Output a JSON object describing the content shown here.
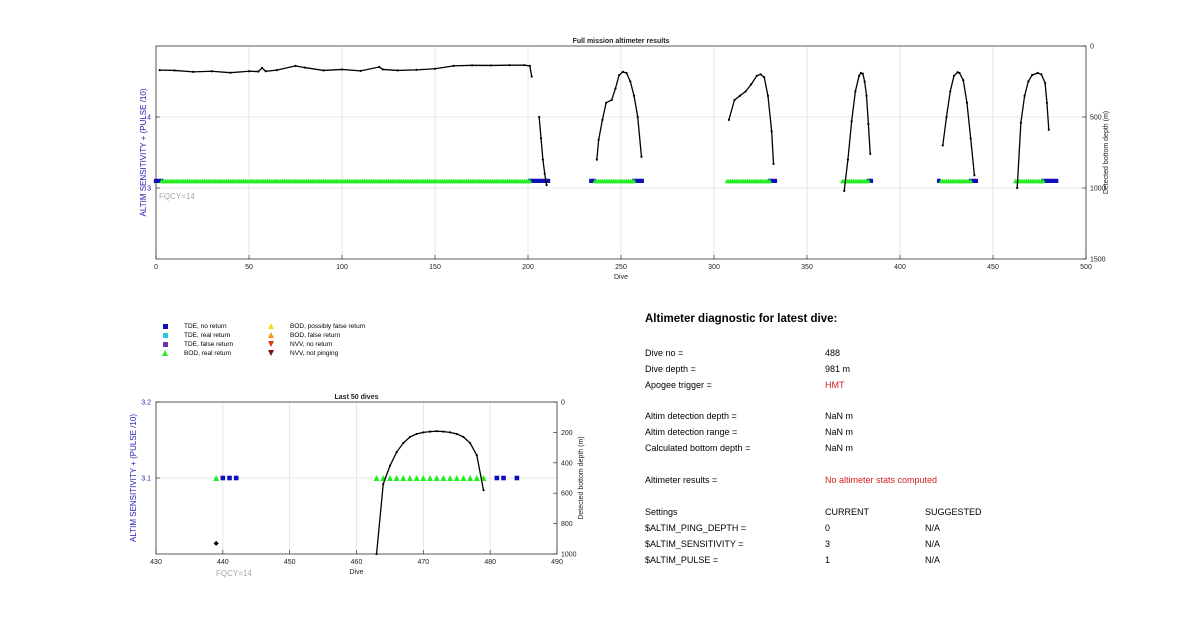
{
  "chart_data": [
    {
      "type": "scatter",
      "title": "Full mission altimeter results",
      "xlabel": "Dive",
      "ylabel": "ALTIM SENSITIVITY + (PULSE /10)",
      "y2label": "Detected bottom depth (m)",
      "annotation": "FQCY=14",
      "xlim": [
        0,
        500
      ],
      "ylim": [
        2,
        5
      ],
      "y2lim": [
        1500,
        0
      ],
      "x_ticks": [
        0,
        50,
        100,
        150,
        200,
        250,
        300,
        350,
        400,
        450,
        500
      ],
      "y_ticks": [
        3,
        4
      ],
      "y2_ticks": [
        0,
        500,
        1000,
        1500
      ],
      "grid": true,
      "series": [
        {
          "name": "TDE, no return",
          "segments": [
            [
              0,
              3,
              3.1
            ],
            [
              201,
              212,
              3.1
            ],
            [
              234,
              236,
              3.1
            ],
            [
              257,
              262,
              3.1
            ],
            [
              330,
              333,
              3.1
            ],
            [
              383,
              385,
              3.1
            ],
            [
              421,
              422,
              3.1
            ],
            [
              438,
              442,
              3.1
            ],
            [
              477,
              484,
              3.1
            ]
          ]
        },
        {
          "name": "BOD, real return",
          "segments": [
            [
              3,
              201,
              3.1
            ],
            [
              236,
              257,
              3.1
            ],
            [
              307,
              330,
              3.1
            ],
            [
              369,
              383,
              3.1
            ],
            [
              422,
              438,
              3.1
            ],
            [
              462,
              477,
              3.1
            ]
          ]
        },
        {
          "name": "Detected bottom depth",
          "points": [
            [
              2,
              170
            ],
            [
              10,
              172
            ],
            [
              20,
              182
            ],
            [
              30,
              178
            ],
            [
              40,
              188
            ],
            [
              50,
              178
            ],
            [
              55,
              180
            ],
            [
              57,
              155
            ],
            [
              59,
              178
            ],
            [
              65,
              170
            ],
            [
              75,
              140
            ],
            [
              80,
              152
            ],
            [
              90,
              172
            ],
            [
              100,
              165
            ],
            [
              110,
              175
            ],
            [
              120,
              148
            ],
            [
              122,
              165
            ],
            [
              130,
              172
            ],
            [
              140,
              168
            ],
            [
              150,
              160
            ],
            [
              160,
              140
            ],
            [
              170,
              136
            ],
            [
              180,
              137
            ],
            [
              190,
              135
            ],
            [
              198,
              135
            ],
            [
              201,
              140
            ],
            [
              202,
              215
            ],
            null,
            [
              206,
              500
            ],
            [
              207,
              650
            ],
            [
              208,
              800
            ],
            [
              209,
              900
            ],
            [
              210,
              980
            ],
            null,
            [
              237,
              800
            ],
            [
              238,
              660
            ],
            [
              240,
              520
            ],
            [
              242,
              400
            ],
            [
              245,
              380
            ],
            [
              247,
              300
            ],
            [
              249,
              205
            ],
            [
              251,
              182
            ],
            [
              253,
              190
            ],
            [
              255,
              250
            ],
            [
              257,
              350
            ],
            [
              259,
              500
            ],
            [
              261,
              780
            ],
            null,
            [
              308,
              520
            ],
            [
              311,
              380
            ],
            [
              314,
              350
            ],
            [
              317,
              320
            ],
            [
              320,
              270
            ],
            [
              323,
              210
            ],
            [
              325,
              200
            ],
            [
              327,
              220
            ],
            [
              329,
              350
            ],
            [
              331,
              600
            ],
            [
              332,
              830
            ],
            null,
            [
              370,
              1020
            ],
            [
              372,
              800
            ],
            [
              374,
              530
            ],
            [
              376,
              320
            ],
            [
              378,
              210
            ],
            [
              379,
              190
            ],
            [
              380,
              195
            ],
            [
              381,
              250
            ],
            [
              382,
              350
            ],
            [
              383,
              550
            ],
            [
              384,
              760
            ],
            null,
            [
              423,
              700
            ],
            [
              425,
              500
            ],
            [
              427,
              320
            ],
            [
              429,
              210
            ],
            [
              431,
              185
            ],
            [
              432,
              190
            ],
            [
              434,
              240
            ],
            [
              436,
              400
            ],
            [
              438,
              650
            ],
            [
              440,
              910
            ],
            null,
            [
              463,
              1000
            ],
            [
              465,
              540
            ],
            [
              467,
              350
            ],
            [
              469,
              250
            ],
            [
              471,
              205
            ],
            [
              474,
              190
            ],
            [
              476,
              200
            ],
            [
              478,
              260
            ],
            [
              479,
              400
            ],
            [
              480,
              590
            ]
          ]
        }
      ]
    },
    {
      "type": "scatter",
      "title": "Last 50 dives",
      "xlabel": "Dive",
      "ylabel": "ALTIM SENSITIVITY + (PULSE /10)",
      "y2label": "Detected bottom depth (m)",
      "annotation": "FQCY=14",
      "xlim": [
        430,
        490
      ],
      "ylim": [
        3.0,
        3.2
      ],
      "y2lim": [
        1000,
        0
      ],
      "x_ticks": [
        430,
        440,
        450,
        460,
        470,
        480,
        490
      ],
      "y_ticks": [
        3.1,
        3.2
      ],
      "y2_ticks": [
        0,
        200,
        400,
        600,
        800,
        1000
      ],
      "grid": true,
      "series": [
        {
          "name": "BOD, real return",
          "points": [
            [
              439,
              3.1
            ],
            [
              463,
              3.1
            ],
            [
              464,
              3.1
            ],
            [
              465,
              3.1
            ],
            [
              466,
              3.1
            ],
            [
              467,
              3.1
            ],
            [
              468,
              3.1
            ],
            [
              469,
              3.1
            ],
            [
              470,
              3.1
            ],
            [
              471,
              3.1
            ],
            [
              472,
              3.1
            ],
            [
              473,
              3.1
            ],
            [
              474,
              3.1
            ],
            [
              475,
              3.1
            ],
            [
              476,
              3.1
            ],
            [
              477,
              3.1
            ],
            [
              478,
              3.1
            ],
            [
              479,
              3.1
            ]
          ]
        },
        {
          "name": "TDE, no return",
          "points": [
            [
              440,
              3.1
            ],
            [
              441,
              3.1
            ],
            [
              442,
              3.1
            ],
            [
              481,
              3.1
            ],
            [
              482,
              3.1
            ],
            [
              484,
              3.1
            ]
          ]
        },
        {
          "name": "Detected bottom depth",
          "points": [
            [
              463,
              1000
            ],
            [
              464,
              540
            ],
            [
              465,
              420
            ],
            [
              466,
              330
            ],
            [
              467,
              270
            ],
            [
              468,
              230
            ],
            [
              469,
              210
            ],
            [
              470,
              200
            ],
            [
              471,
              195
            ],
            [
              472,
              192
            ],
            [
              473,
              195
            ],
            [
              474,
              200
            ],
            [
              475,
              210
            ],
            [
              476,
              230
            ],
            [
              477,
              270
            ],
            [
              478,
              350
            ],
            [
              479,
              580
            ]
          ]
        },
        {
          "name": "Isolated depth point",
          "points": [
            [
              439,
              930
            ]
          ]
        }
      ]
    }
  ],
  "legend": {
    "items": [
      {
        "label": "TDE, no return",
        "color": "#1010b8",
        "shape": "square"
      },
      {
        "label": "TDE, real return",
        "color": "#22c8e6",
        "shape": "square"
      },
      {
        "label": "TDE, false return",
        "color": "#6a34b0",
        "shape": "square"
      },
      {
        "label": "BOD, real return",
        "color": "#22ee22",
        "shape": "triangle-up"
      },
      {
        "label": "BOD, possibly false return",
        "color": "#f2e020",
        "shape": "triangle-up"
      },
      {
        "label": "BOD, false return",
        "color": "#f09c18",
        "shape": "triangle-up"
      },
      {
        "label": "NVV, no return",
        "color": "#d83a18",
        "shape": "triangle-down"
      },
      {
        "label": "NVV, not pinging",
        "color": "#7a1010",
        "shape": "triangle-down"
      }
    ]
  },
  "diagnostic": {
    "title": "Altimeter diagnostic for latest dive:",
    "dive_no_label": "Dive no =",
    "dive_no": "488",
    "dive_depth_label": "Dive depth =",
    "dive_depth": "981 m",
    "apogee_label": "Apogee trigger =",
    "apogee": "HMT",
    "det_depth_label": "Altim detection depth =",
    "det_depth": "NaN m",
    "det_range_label": "Altim detection range =",
    "det_range": "NaN m",
    "calc_depth_label": "Calculated bottom depth =",
    "calc_depth": "NaN m",
    "results_label": "Altimeter results =",
    "results": "No altimeter stats computed",
    "settings_label": "Settings",
    "current_header": "CURRENT",
    "suggested_header": "SUGGESTED",
    "settings": [
      {
        "name": "$ALTIM_PING_DEPTH =",
        "current": "0",
        "suggested": "N/A"
      },
      {
        "name": "$ALTIM_SENSITIVITY =",
        "current": "3",
        "suggested": "N/A"
      },
      {
        "name": "$ALTIM_PULSE =",
        "current": "1",
        "suggested": "N/A"
      }
    ]
  },
  "colors": {
    "axis_left": "#2020b0",
    "grid": "#e0e0e0",
    "annotation": "#a8a8a8",
    "red_text": "#d42020"
  }
}
